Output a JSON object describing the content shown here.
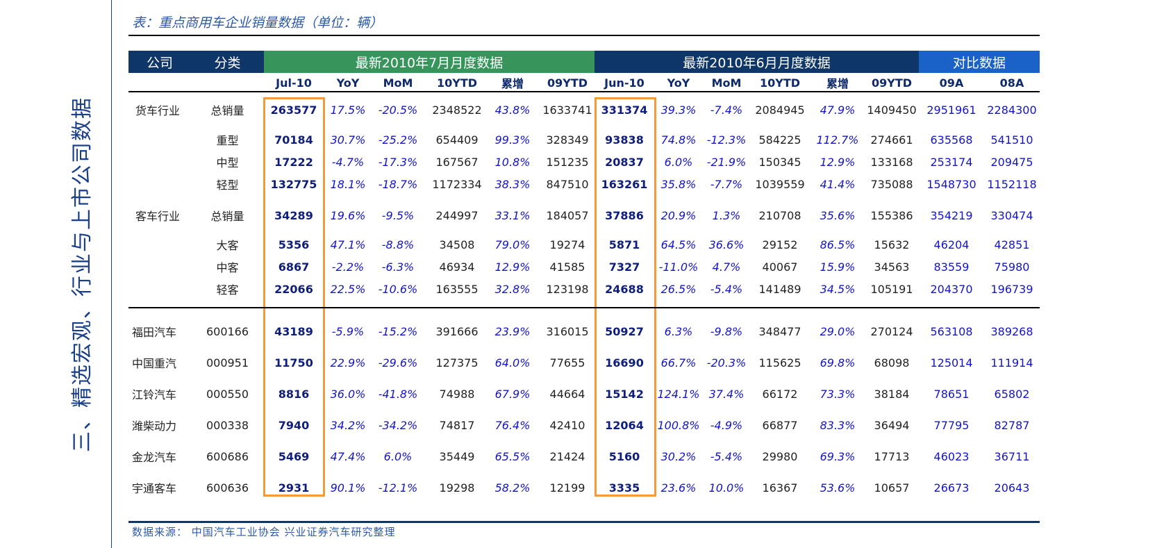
{
  "side_title": "三、精选宏观、行业与上市公司数据",
  "caption": "表：重点商用车企业销量数据（单位：辆）",
  "header": {
    "company": "公司",
    "category": "分类",
    "group_jul": "最新2010年7月月度数据",
    "group_jun": "最新2010年6月月度数据",
    "group_cmp": "对比数据"
  },
  "subheaders": [
    "Jul-10",
    "YoY",
    "MoM",
    "10YTD",
    "累增",
    "09YTD",
    "Jun-10",
    "YoY",
    "MoM",
    "10YTD",
    "累增",
    "09YTD",
    "09A",
    "08A"
  ],
  "rows": [
    {
      "company": "货车行业",
      "category": "总销量",
      "values": [
        "263577",
        "17.5%",
        "-20.5%",
        "2348522",
        "43.8%",
        "1633741",
        "331374",
        "39.3%",
        "-7.4%",
        "2084945",
        "47.9%",
        "1409450",
        "2951961",
        "2284300"
      ]
    },
    {
      "company": "",
      "category": "重型",
      "values": [
        "70184",
        "30.7%",
        "-25.2%",
        "654409",
        "99.3%",
        "328349",
        "93838",
        "74.8%",
        "-12.3%",
        "584225",
        "112.7%",
        "274661",
        "635568",
        "541510"
      ]
    },
    {
      "company": "",
      "category": "中型",
      "values": [
        "17222",
        "-4.7%",
        "-17.3%",
        "167567",
        "10.8%",
        "151235",
        "20837",
        "6.0%",
        "-21.9%",
        "150345",
        "12.9%",
        "133168",
        "253174",
        "209475"
      ]
    },
    {
      "company": "",
      "category": "轻型",
      "values": [
        "132775",
        "18.1%",
        "-18.7%",
        "1172334",
        "38.3%",
        "847510",
        "163261",
        "35.8%",
        "-7.7%",
        "1039559",
        "41.4%",
        "735088",
        "1548730",
        "1152118"
      ]
    },
    {
      "company": "客车行业",
      "category": "总销量",
      "values": [
        "34289",
        "19.6%",
        "-9.5%",
        "244997",
        "33.1%",
        "184057",
        "37886",
        "20.9%",
        "1.3%",
        "210708",
        "35.6%",
        "155386",
        "354219",
        "330474"
      ]
    },
    {
      "company": "",
      "category": "大客",
      "values": [
        "5356",
        "47.1%",
        "-8.8%",
        "34508",
        "79.0%",
        "19274",
        "5871",
        "64.5%",
        "36.6%",
        "29152",
        "86.5%",
        "15632",
        "46204",
        "42851"
      ]
    },
    {
      "company": "",
      "category": "中客",
      "values": [
        "6867",
        "-2.2%",
        "-6.3%",
        "46934",
        "12.9%",
        "41585",
        "7327",
        "-11.0%",
        "4.7%",
        "40067",
        "15.9%",
        "34563",
        "83559",
        "75980"
      ]
    },
    {
      "company": "",
      "category": "轻客",
      "values": [
        "22066",
        "22.5%",
        "-10.6%",
        "163555",
        "32.8%",
        "123198",
        "24688",
        "26.5%",
        "-5.4%",
        "141489",
        "34.5%",
        "105191",
        "204370",
        "196739"
      ]
    },
    {
      "company": "福田汽车",
      "category": "600166",
      "values": [
        "43189",
        "-5.9%",
        "-15.2%",
        "391666",
        "23.9%",
        "316015",
        "50927",
        "6.3%",
        "-9.8%",
        "348477",
        "29.0%",
        "270124",
        "563108",
        "389268"
      ]
    },
    {
      "company": "中国重汽",
      "category": "000951",
      "values": [
        "11750",
        "22.9%",
        "-29.6%",
        "127375",
        "64.0%",
        "77655",
        "16690",
        "66.7%",
        "-20.3%",
        "115625",
        "69.8%",
        "68098",
        "125014",
        "111914"
      ]
    },
    {
      "company": "江铃汽车",
      "category": "000550",
      "values": [
        "8816",
        "36.0%",
        "-41.8%",
        "74988",
        "67.9%",
        "44664",
        "15142",
        "124.1%",
        "37.4%",
        "66172",
        "73.3%",
        "38184",
        "78651",
        "65802"
      ]
    },
    {
      "company": "潍柴动力",
      "category": "000338",
      "values": [
        "7940",
        "34.2%",
        "-34.2%",
        "74817",
        "76.4%",
        "42410",
        "12064",
        "100.8%",
        "-4.9%",
        "66877",
        "83.3%",
        "36494",
        "77795",
        "82787"
      ]
    },
    {
      "company": "金龙汽车",
      "category": "600686",
      "values": [
        "5469",
        "47.4%",
        "6.0%",
        "35449",
        "65.5%",
        "21424",
        "5160",
        "30.2%",
        "-5.4%",
        "29980",
        "69.3%",
        "17713",
        "46023",
        "36711"
      ]
    },
    {
      "company": "宇通客车",
      "category": "600636",
      "values": [
        "2931",
        "90.1%",
        "-12.1%",
        "19298",
        "58.2%",
        "12199",
        "3335",
        "23.6%",
        "10.0%",
        "16367",
        "53.6%",
        "10657",
        "26673",
        "20643"
      ]
    }
  ],
  "source": "数据来源：   中国汽车工业协会    兴业证券汽车研究整理"
}
